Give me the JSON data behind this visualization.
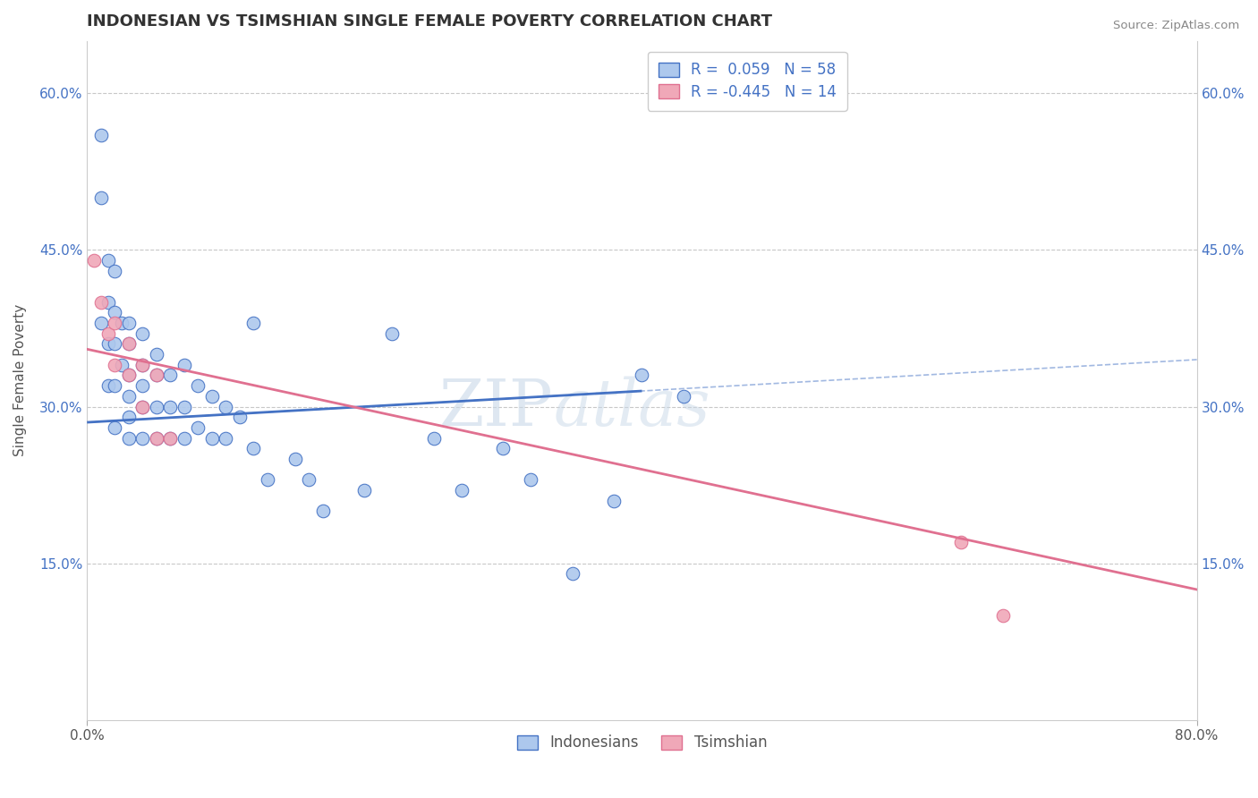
{
  "title": "INDONESIAN VS TSIMSHIAN SINGLE FEMALE POVERTY CORRELATION CHART",
  "source": "Source: ZipAtlas.com",
  "ylabel": "Single Female Poverty",
  "xlim": [
    0.0,
    0.8
  ],
  "ylim": [
    0.0,
    0.65
  ],
  "xtick_labels": [
    "0.0%",
    "80.0%"
  ],
  "ytick_positions": [
    0.15,
    0.3,
    0.45,
    0.6
  ],
  "ytick_labels": [
    "15.0%",
    "30.0%",
    "45.0%",
    "60.0%"
  ],
  "indonesian_R": 0.059,
  "indonesian_N": 58,
  "tsimshian_R": -0.445,
  "tsimshian_N": 14,
  "indonesian_color": "#adc8ed",
  "tsimshian_color": "#f0a8b8",
  "indonesian_line_color": "#4472c4",
  "tsimshian_line_color": "#e07090",
  "background_color": "#ffffff",
  "grid_color": "#c8c8c8",
  "indonesian_x": [
    0.01,
    0.01,
    0.01,
    0.015,
    0.015,
    0.015,
    0.015,
    0.02,
    0.02,
    0.02,
    0.02,
    0.02,
    0.025,
    0.025,
    0.03,
    0.03,
    0.03,
    0.03,
    0.03,
    0.03,
    0.04,
    0.04,
    0.04,
    0.04,
    0.04,
    0.05,
    0.05,
    0.05,
    0.05,
    0.06,
    0.06,
    0.06,
    0.07,
    0.07,
    0.07,
    0.08,
    0.08,
    0.09,
    0.09,
    0.1,
    0.1,
    0.11,
    0.12,
    0.12,
    0.13,
    0.15,
    0.16,
    0.17,
    0.2,
    0.22,
    0.25,
    0.27,
    0.3,
    0.32,
    0.35,
    0.38,
    0.4,
    0.43
  ],
  "indonesian_y": [
    0.56,
    0.5,
    0.38,
    0.44,
    0.4,
    0.36,
    0.32,
    0.43,
    0.39,
    0.36,
    0.32,
    0.28,
    0.38,
    0.34,
    0.38,
    0.36,
    0.33,
    0.31,
    0.29,
    0.27,
    0.37,
    0.34,
    0.32,
    0.3,
    0.27,
    0.35,
    0.33,
    0.3,
    0.27,
    0.33,
    0.3,
    0.27,
    0.34,
    0.3,
    0.27,
    0.32,
    0.28,
    0.31,
    0.27,
    0.3,
    0.27,
    0.29,
    0.38,
    0.26,
    0.23,
    0.25,
    0.23,
    0.2,
    0.22,
    0.37,
    0.27,
    0.22,
    0.26,
    0.23,
    0.14,
    0.21,
    0.33,
    0.31
  ],
  "tsimshian_x": [
    0.005,
    0.01,
    0.015,
    0.02,
    0.02,
    0.03,
    0.03,
    0.04,
    0.04,
    0.05,
    0.05,
    0.06,
    0.63,
    0.66
  ],
  "tsimshian_y": [
    0.44,
    0.4,
    0.37,
    0.38,
    0.34,
    0.36,
    0.33,
    0.34,
    0.3,
    0.33,
    0.27,
    0.27,
    0.17,
    0.1
  ],
  "indo_line_x0": 0.0,
  "indo_line_x1": 0.4,
  "indo_line_y0": 0.285,
  "indo_line_y1": 0.315,
  "tsim_line_x0": 0.0,
  "tsim_line_x1": 0.8,
  "tsim_line_y0": 0.355,
  "tsim_line_y1": 0.125,
  "dashed_line_x0": 0.0,
  "dashed_line_x1": 0.8,
  "dashed_line_y0": 0.285,
  "dashed_line_y1": 0.345
}
